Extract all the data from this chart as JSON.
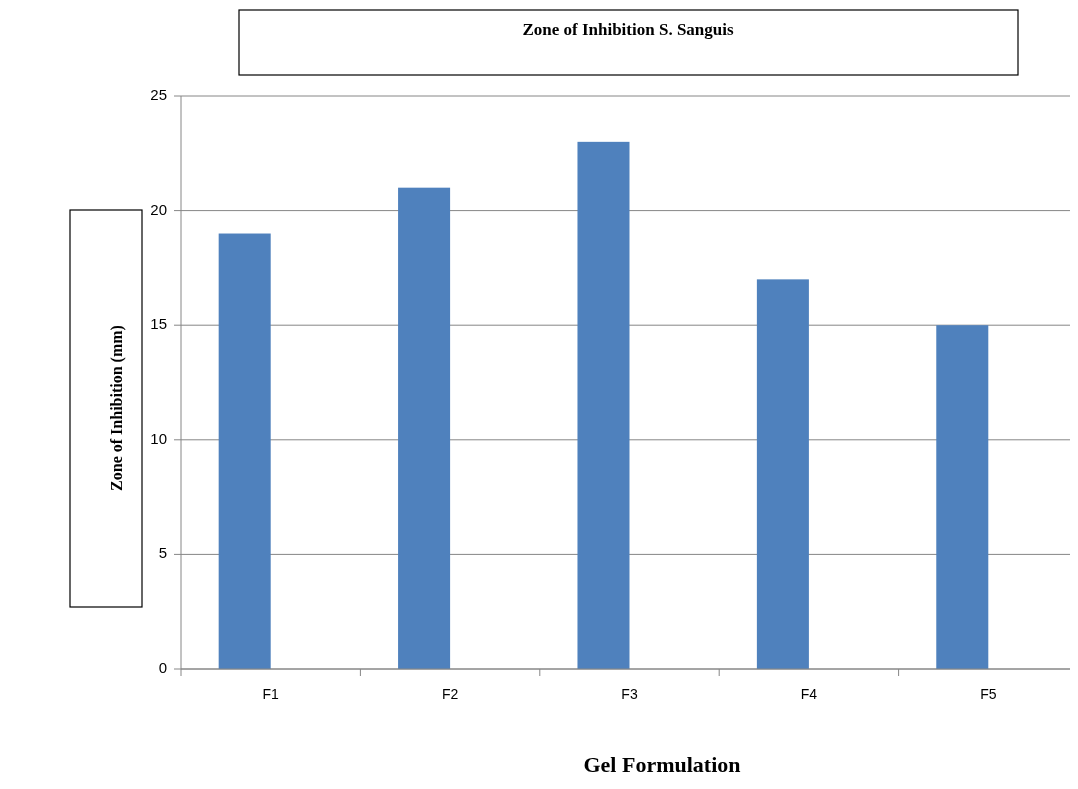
{
  "chart_data": {
    "type": "bar",
    "title": "Zone of Inhibition S. Sanguis",
    "xlabel": "Gel Formulation",
    "ylabel": "Zone of Inhibition (mm)",
    "categories": [
      "F1",
      "F2",
      "F3",
      "F4",
      "F5"
    ],
    "values": [
      19,
      21,
      23,
      17,
      15
    ],
    "color": "#4f81bd",
    "ylim": [
      0,
      25
    ],
    "yticks": [
      0,
      5,
      10,
      15,
      20,
      25
    ],
    "grid": "y"
  }
}
